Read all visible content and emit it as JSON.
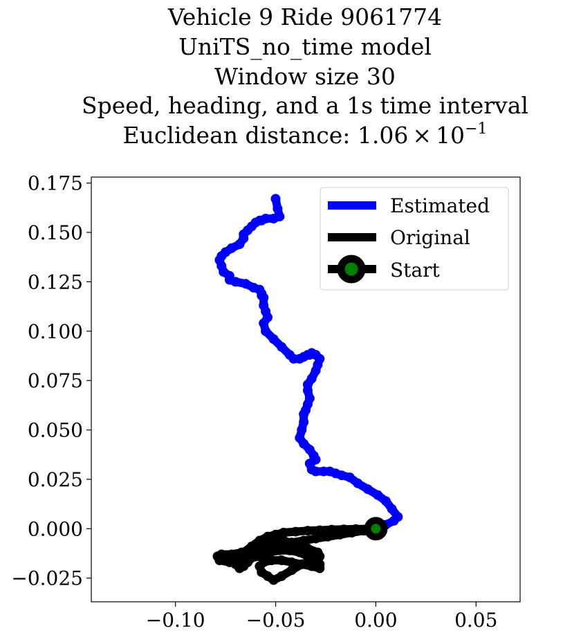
{
  "chart_data": {
    "type": "line",
    "title_lines": [
      "Vehicle 9 Ride 9061774",
      "UniTS_no_time model",
      "Window size 30",
      "Speed, heading, and a 1s time interval"
    ],
    "title_distance_prefix": "Euclidean distance: ",
    "title_distance_mantissa": "1.06",
    "title_distance_times": "×",
    "title_distance_base": "10",
    "title_distance_exponent": "−1",
    "xlabel": "",
    "ylabel": "",
    "xlim": [
      -0.142,
      0.072
    ],
    "ylim": [
      -0.037,
      0.178
    ],
    "xticks": [
      {
        "value": -0.1,
        "label": "−0.10"
      },
      {
        "value": -0.05,
        "label": "−0.05"
      },
      {
        "value": 0.0,
        "label": "0.00"
      },
      {
        "value": 0.05,
        "label": "0.05"
      }
    ],
    "yticks": [
      {
        "value": -0.025,
        "label": "−0.025"
      },
      {
        "value": 0.0,
        "label": "0.000"
      },
      {
        "value": 0.025,
        "label": "0.025"
      },
      {
        "value": 0.05,
        "label": "0.050"
      },
      {
        "value": 0.075,
        "label": "0.075"
      },
      {
        "value": 0.1,
        "label": "0.100"
      },
      {
        "value": 0.125,
        "label": "0.125"
      },
      {
        "value": 0.15,
        "label": "0.150"
      },
      {
        "value": 0.175,
        "label": "0.175"
      }
    ],
    "grid": false,
    "legend_position": "top-right",
    "series": [
      {
        "name": "Estimated",
        "color": "#0000ff",
        "x": [
          0.0,
          0.005,
          0.009,
          0.011,
          0.008,
          0.005,
          0.001,
          -0.004,
          -0.009,
          -0.013,
          -0.017,
          -0.02,
          -0.023,
          -0.026,
          -0.03,
          -0.032,
          -0.033,
          -0.03,
          -0.031,
          -0.033,
          -0.036,
          -0.038,
          -0.037,
          -0.036,
          -0.036,
          -0.035,
          -0.034,
          -0.033,
          -0.034,
          -0.034,
          -0.032,
          -0.03,
          -0.029,
          -0.028,
          -0.03,
          -0.032,
          -0.033,
          -0.034,
          -0.036,
          -0.038,
          -0.041,
          -0.043,
          -0.047,
          -0.051,
          -0.055,
          -0.056,
          -0.054,
          -0.055,
          -0.056,
          -0.056,
          -0.057,
          -0.057,
          -0.058,
          -0.061,
          -0.065,
          -0.07,
          -0.073,
          -0.073,
          -0.076,
          -0.077,
          -0.078,
          -0.077,
          -0.075,
          -0.072,
          -0.068,
          -0.066,
          -0.066,
          -0.064,
          -0.062,
          -0.06,
          -0.058,
          -0.057,
          -0.055,
          -0.051,
          -0.048,
          -0.049,
          -0.05
        ],
        "y": [
          0.0,
          0.002,
          0.004,
          0.006,
          0.01,
          0.014,
          0.017,
          0.02,
          0.023,
          0.026,
          0.027,
          0.028,
          0.029,
          0.029,
          0.029,
          0.03,
          0.033,
          0.035,
          0.037,
          0.04,
          0.043,
          0.046,
          0.05,
          0.054,
          0.058,
          0.06,
          0.063,
          0.066,
          0.07,
          0.073,
          0.076,
          0.08,
          0.083,
          0.086,
          0.088,
          0.089,
          0.088,
          0.088,
          0.087,
          0.086,
          0.086,
          0.088,
          0.092,
          0.096,
          0.1,
          0.104,
          0.107,
          0.11,
          0.113,
          0.117,
          0.118,
          0.119,
          0.121,
          0.122,
          0.124,
          0.125,
          0.126,
          0.128,
          0.13,
          0.133,
          0.136,
          0.138,
          0.14,
          0.142,
          0.144,
          0.147,
          0.149,
          0.151,
          0.153,
          0.155,
          0.156,
          0.156,
          0.157,
          0.157,
          0.158,
          0.162,
          0.167
        ]
      },
      {
        "name": "Original",
        "color": "#000000",
        "x": [
          0.0,
          -0.006,
          -0.012,
          -0.018,
          -0.024,
          -0.03,
          -0.036,
          -0.042,
          -0.047,
          -0.052,
          -0.057,
          -0.062,
          -0.067,
          -0.072,
          -0.077,
          -0.079,
          -0.078,
          -0.073,
          -0.068,
          -0.063,
          -0.058,
          -0.053,
          -0.048,
          -0.043,
          -0.038,
          -0.034,
          -0.03,
          -0.028,
          -0.028,
          -0.032,
          -0.037,
          -0.042,
          -0.047,
          -0.052,
          -0.056,
          -0.058,
          -0.057,
          -0.054,
          -0.051,
          -0.047,
          -0.042,
          -0.037,
          -0.032,
          -0.028,
          -0.029,
          -0.034,
          -0.04,
          -0.046,
          -0.051,
          -0.055,
          -0.058,
          -0.061,
          -0.064,
          -0.066,
          -0.068,
          -0.07,
          -0.069,
          -0.066,
          -0.062,
          -0.058,
          -0.054,
          -0.05,
          -0.046,
          -0.04,
          -0.034,
          -0.028,
          -0.022,
          -0.016,
          -0.01,
          -0.004,
          0.0
        ],
        "y": [
          0.0,
          -0.001,
          -0.002,
          -0.003,
          -0.004,
          -0.005,
          -0.006,
          -0.007,
          -0.009,
          -0.01,
          -0.011,
          -0.012,
          -0.012,
          -0.013,
          -0.013,
          -0.014,
          -0.016,
          -0.017,
          -0.016,
          -0.015,
          -0.014,
          -0.012,
          -0.011,
          -0.011,
          -0.012,
          -0.014,
          -0.016,
          -0.018,
          -0.02,
          -0.019,
          -0.018,
          -0.017,
          -0.016,
          -0.016,
          -0.017,
          -0.019,
          -0.022,
          -0.024,
          -0.026,
          -0.024,
          -0.021,
          -0.018,
          -0.016,
          -0.014,
          -0.012,
          -0.01,
          -0.008,
          -0.006,
          -0.006,
          -0.008,
          -0.011,
          -0.014,
          -0.017,
          -0.019,
          -0.02,
          -0.018,
          -0.015,
          -0.012,
          -0.009,
          -0.006,
          -0.004,
          -0.003,
          -0.002,
          -0.0015,
          -0.001,
          -0.0008,
          -0.0005,
          -0.0003,
          -0.0002,
          -0.0001,
          0.0
        ]
      }
    ],
    "start": {
      "name": "Start",
      "x": 0.0,
      "y": 0.0,
      "marker_color": "#008000",
      "edge_color": "#000000"
    }
  }
}
